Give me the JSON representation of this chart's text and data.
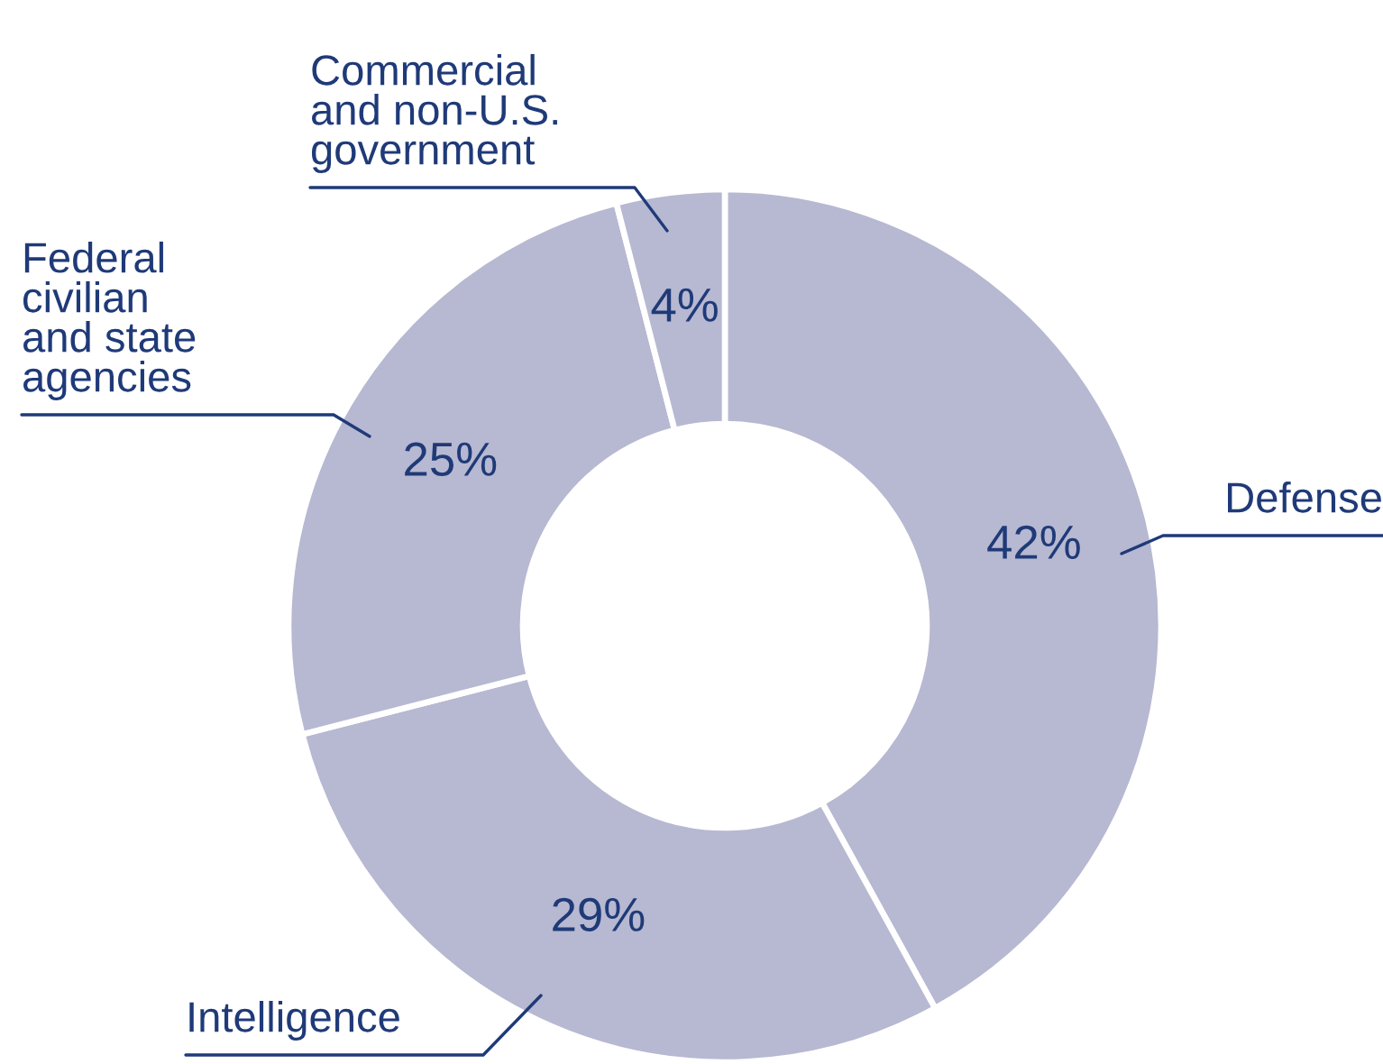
{
  "chart_data": {
    "type": "donut",
    "categories": [
      "Defense",
      "Intelligence",
      "Federal civilian and state agencies",
      "Commercial and non-U.S. government"
    ],
    "values": [
      42,
      29,
      25,
      4
    ],
    "value_labels": [
      "42%",
      "29%",
      "25%",
      "4%"
    ],
    "colors": [
      "#b7b8d1",
      "#b7b8d1",
      "#b7b8d1",
      "#b7b8d1"
    ],
    "legend": false
  }
}
